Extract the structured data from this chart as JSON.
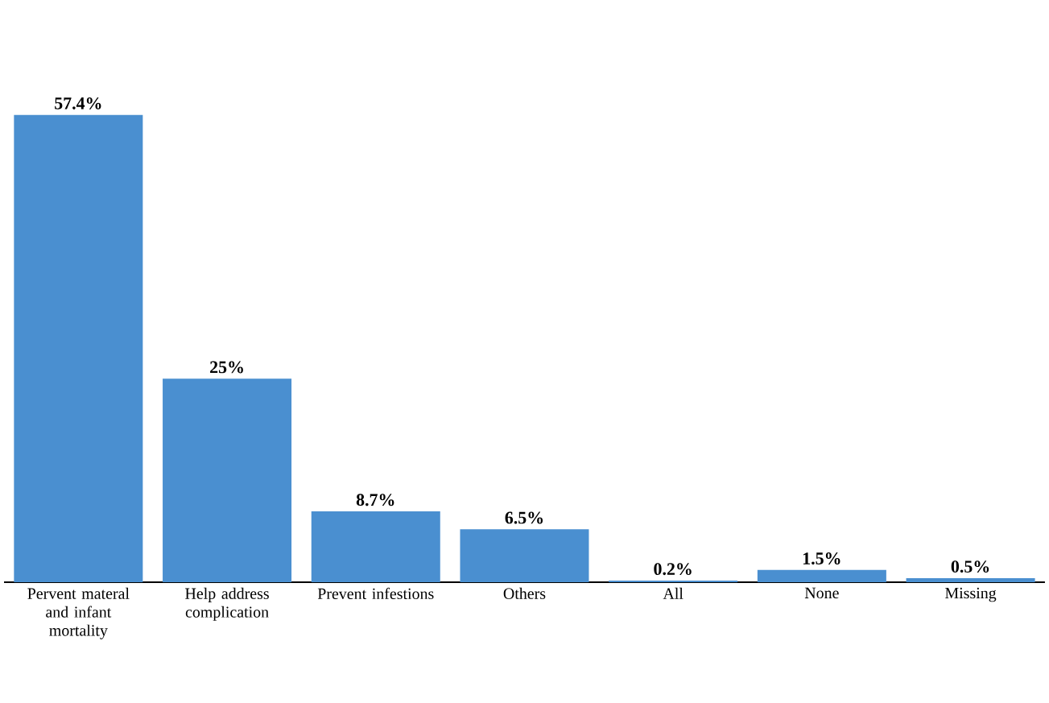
{
  "chart_data": {
    "type": "bar",
    "categories": [
      "Pervent materal and infant mortality",
      "Help address complication",
      "Prevent infestions",
      "Others",
      "All",
      "None",
      "Missing"
    ],
    "values": [
      57.4,
      25,
      8.7,
      6.5,
      0.2,
      1.5,
      0.5
    ],
    "value_labels": [
      "57.4%",
      "25%",
      "8.7%",
      "6.5%",
      "0.2%",
      "1.5%",
      "0.5%"
    ],
    "color": "#4a8fd0"
  }
}
